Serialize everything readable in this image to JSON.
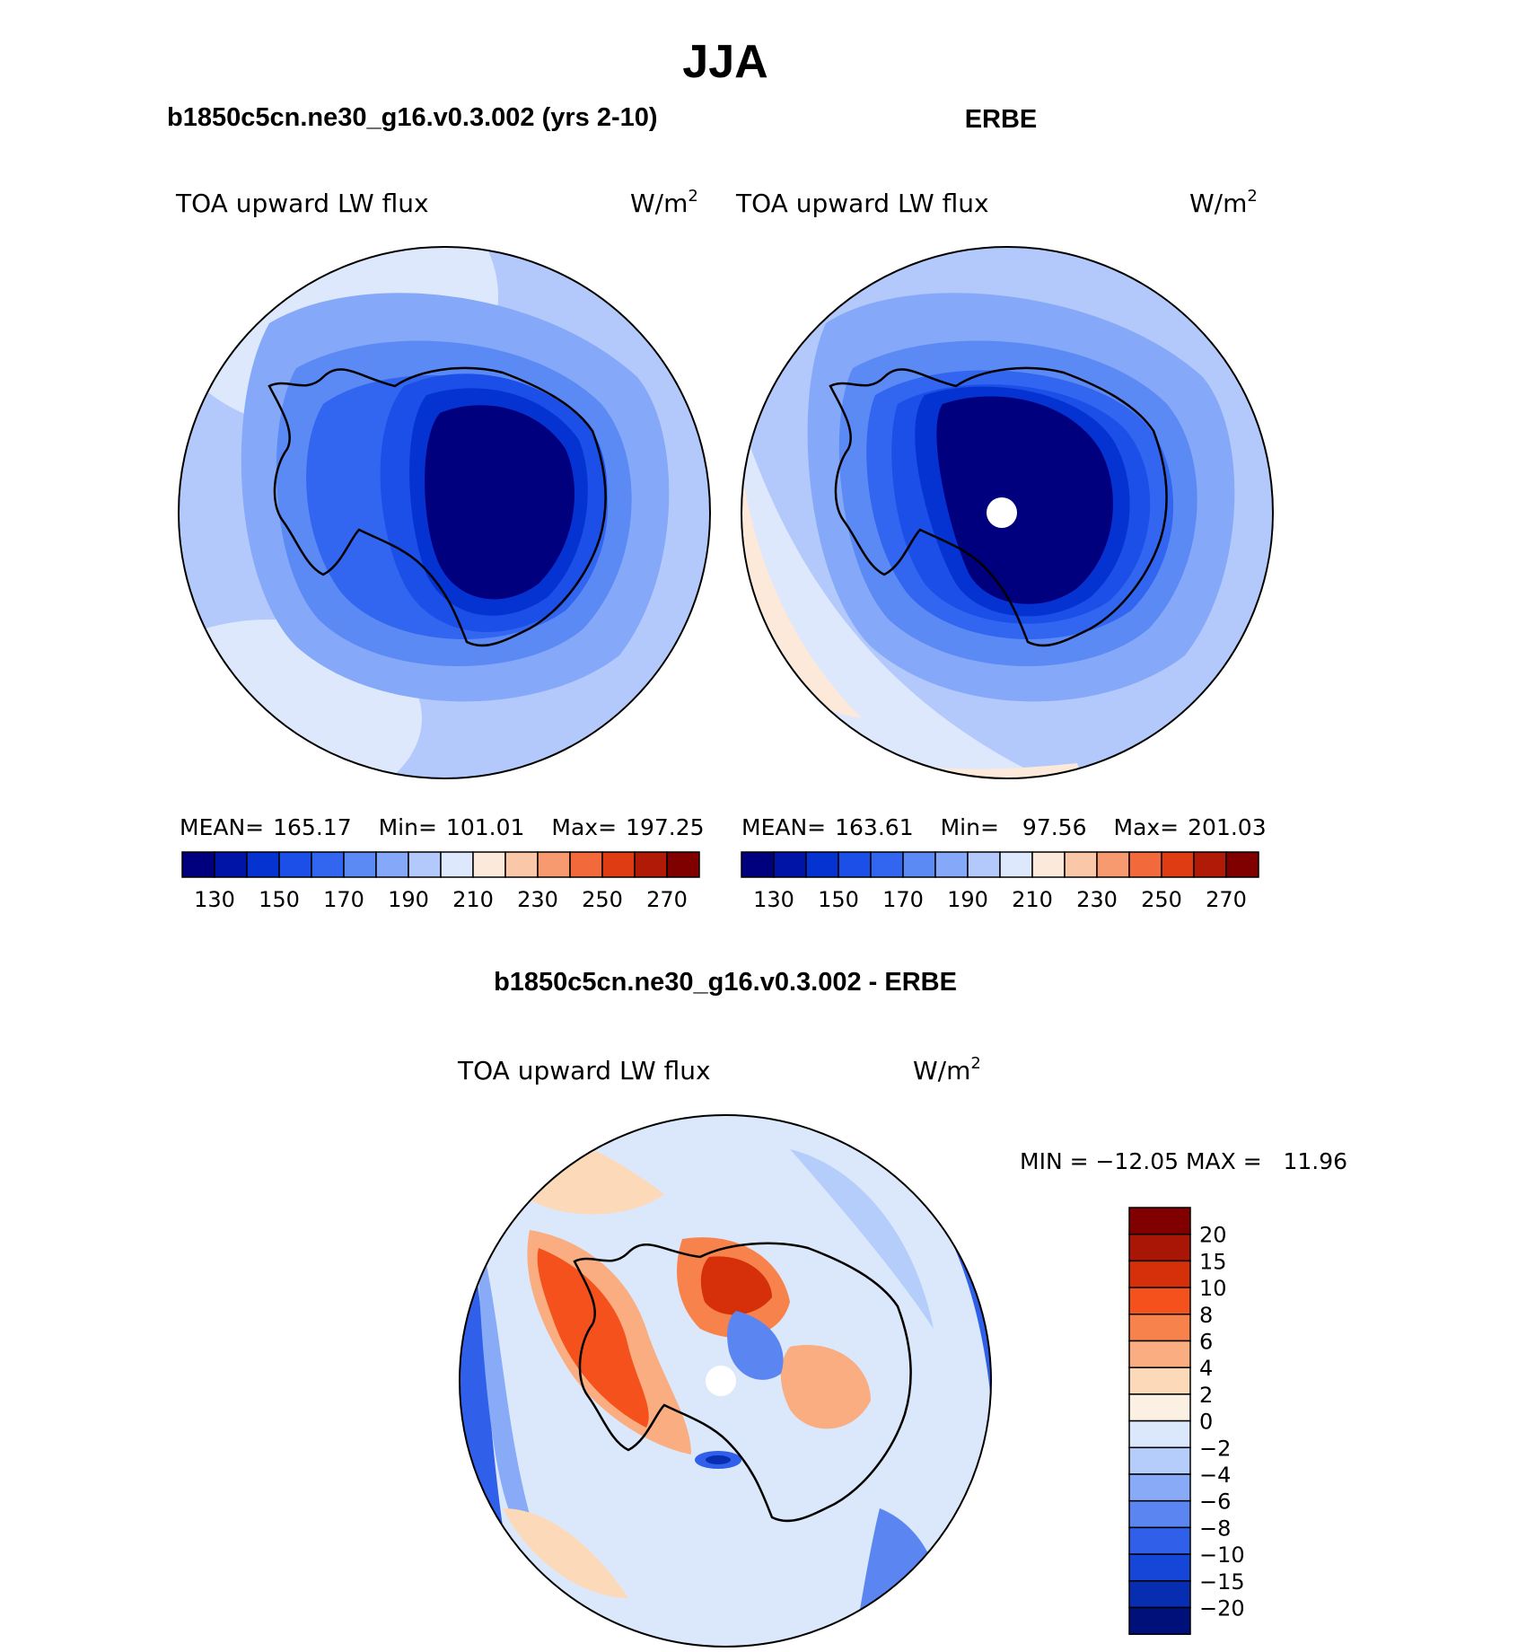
{
  "chart_data": [
    {
      "type": "heatmap",
      "projection": "south-polar-stereographic",
      "figure_title": "JJA",
      "title": "b1850c5cn.ne30_g16.v0.3.002 (yrs 2-10)",
      "left_label": "TOA upward LW flux",
      "units": "W/m",
      "units_sup": "2",
      "stats": {
        "mean_label": "MEAN=",
        "mean": "165.17",
        "min_label": "Min=",
        "min": "101.01",
        "max_label": "Max=",
        "max": "197.25"
      },
      "levels": [
        130,
        140,
        150,
        160,
        170,
        180,
        190,
        200,
        210,
        220,
        230,
        240,
        250,
        260,
        270
      ],
      "colorbar_labels": [
        "130",
        "150",
        "170",
        "190",
        "210",
        "230",
        "250",
        "270"
      ]
    },
    {
      "type": "heatmap",
      "projection": "south-polar-stereographic",
      "title": "ERBE",
      "left_label": "TOA upward LW flux",
      "units": "W/m",
      "units_sup": "2",
      "stats": {
        "mean_label": "MEAN=",
        "mean": "163.61",
        "min_label": "Min=",
        "min": "97.56",
        "max_label": "Max=",
        "max": "201.03"
      },
      "levels": [
        130,
        140,
        150,
        160,
        170,
        180,
        190,
        200,
        210,
        220,
        230,
        240,
        250,
        260,
        270
      ],
      "colorbar_labels": [
        "130",
        "150",
        "170",
        "190",
        "210",
        "230",
        "250",
        "270"
      ]
    },
    {
      "type": "heatmap",
      "projection": "south-polar-stereographic",
      "title": "b1850c5cn.ne30_g16.v0.3.002 - ERBE",
      "left_label": "TOA upward LW flux",
      "units": "W/m",
      "units_sup": "2",
      "min_max_text": "MIN = −12.05 MAX =   11.96",
      "levels": [
        -20,
        -15,
        -10,
        -8,
        -6,
        -4,
        -2,
        0,
        2,
        4,
        6,
        8,
        10,
        15,
        20
      ],
      "colorbar_labels": [
        "20",
        "15",
        "10",
        "8",
        "6",
        "4",
        "2",
        "0",
        "−2",
        "−4",
        "−6",
        "−8",
        "−10",
        "−15",
        "−20"
      ]
    }
  ],
  "palette_abs": [
    "#00007f",
    "#0015a8",
    "#0533d1",
    "#1b4fe8",
    "#3366f0",
    "#5c8af5",
    "#85a9f8",
    "#b4c9fb",
    "#dde8fc",
    "#fce9d9",
    "#fbc7a9",
    "#f89a70",
    "#f26a3c",
    "#e03c14",
    "#b01a06",
    "#800000"
  ],
  "palette_diff": [
    "#800000",
    "#a91606",
    "#d6300b",
    "#f5511c",
    "#f8824c",
    "#f9ad80",
    "#fcdab9",
    "#fcf0e2",
    "#dbe8fb",
    "#b5cdfa",
    "#88aaf7",
    "#5b85f1",
    "#3060ea",
    "#1546d8",
    "#072eb0",
    "#00107a"
  ]
}
